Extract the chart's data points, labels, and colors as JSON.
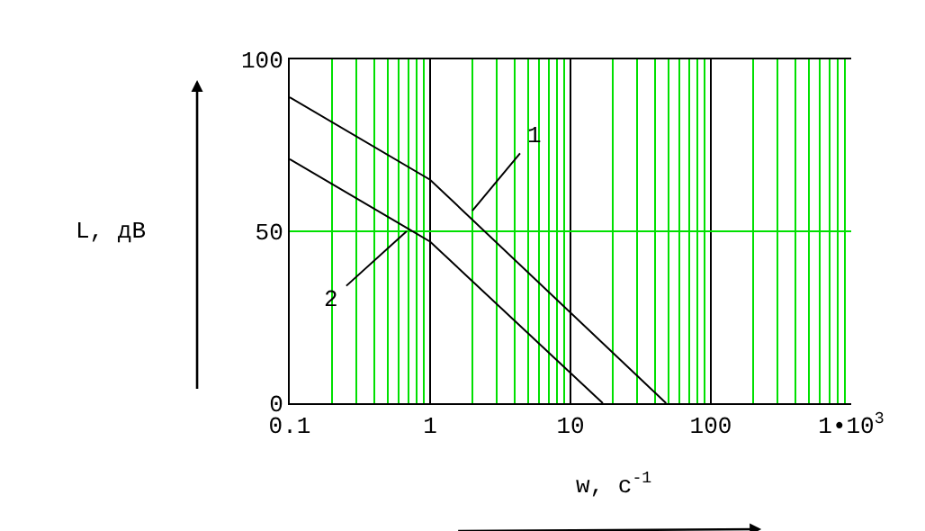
{
  "chart_data": {
    "type": "line",
    "xlabel": "w, c$^{-1}$",
    "ylabel": "L, дB",
    "log": "x",
    "xlim": [
      0.1,
      1000
    ],
    "ylim": [
      0,
      100
    ],
    "xticks": [
      0.1,
      {
        "value": 0.2,
        "label": null
      },
      {
        "value": 0.3,
        "label": null
      },
      {
        "value": 0.4,
        "label": null
      },
      {
        "value": 0.5,
        "label": null
      },
      {
        "value": 0.6,
        "label": null
      },
      {
        "value": 0.7,
        "label": null
      },
      {
        "value": 0.8,
        "label": null
      },
      {
        "value": 0.9,
        "label": null
      },
      1,
      {
        "value": 2,
        "label": null
      },
      {
        "value": 3,
        "label": null
      },
      {
        "value": 4,
        "label": null
      },
      {
        "value": 5,
        "label": null
      },
      {
        "value": 6,
        "label": null
      },
      {
        "value": 7,
        "label": null
      },
      {
        "value": 8,
        "label": null
      },
      {
        "value": 9,
        "label": null
      },
      10,
      {
        "value": 20,
        "label": null
      },
      {
        "value": 30,
        "label": null
      },
      {
        "value": 40,
        "label": null
      },
      {
        "value": 50,
        "label": null
      },
      {
        "value": 60,
        "label": null
      },
      {
        "value": 70,
        "label": null
      },
      {
        "value": 80,
        "label": null
      },
      {
        "value": 90,
        "label": null
      },
      100,
      {
        "value": 200,
        "label": null
      },
      {
        "value": 300,
        "label": null
      },
      {
        "value": 400,
        "label": null
      },
      {
        "value": 500,
        "label": null
      },
      {
        "value": 600,
        "label": null
      },
      {
        "value": 700,
        "label": null
      },
      {
        "value": 800,
        "label": null
      },
      {
        "value": 900,
        "label": null
      },
      {
        "value": 1000,
        "label": "1•10$^{3}$"
      }
    ],
    "yticks": [
      0,
      50,
      100
    ],
    "grid": true,
    "legend": false,
    "marker": "none",
    "line_style": "solid",
    "series": [
      {
        "color": "#000000",
        "x": [
          0.1,
          1,
          48
        ],
        "values": [
          89,
          65,
          0
        ]
      },
      {
        "color": "#000000",
        "x": [
          0.1,
          1,
          17
        ],
        "values": [
          71,
          47,
          0
        ]
      }
    ],
    "annotations": [
      {
        "text": "1",
        "x": 2,
        "y": 56
      },
      {
        "text": "2",
        "x": 0.68,
        "y": 50
      }
    ]
  }
}
